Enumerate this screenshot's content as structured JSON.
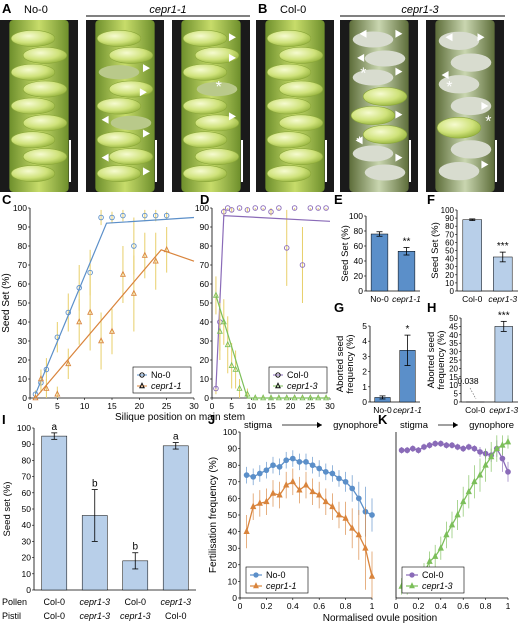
{
  "panels": {
    "A": {
      "letter": "A",
      "labels": [
        "No-0",
        "cepr1-1"
      ]
    },
    "B": {
      "letter": "B",
      "labels": [
        "Col-0",
        "cepr1-3"
      ]
    },
    "C": {
      "letter": "C"
    },
    "D": {
      "letter": "D"
    },
    "E": {
      "letter": "E"
    },
    "F": {
      "letter": "F"
    },
    "G": {
      "letter": "G"
    },
    "H": {
      "letter": "H"
    },
    "I": {
      "letter": "I"
    },
    "J": {
      "letter": "J"
    },
    "K": {
      "letter": "K"
    }
  },
  "colors": {
    "no0": "#5b8fc9",
    "cepr11": "#d9843c",
    "col0": "#8a6bb8",
    "cepr13": "#7cbf5a",
    "bar_dark": "#5b8fc9",
    "bar_light": "#b8cfe9",
    "silique": "#b8cf5a"
  },
  "chart_data": [
    {
      "panel": "C",
      "type": "scatter",
      "xlabel": "Silique position on main stem",
      "ylabel": "Seed Set (%)",
      "xlim": [
        0,
        30
      ],
      "ylim": [
        0,
        100
      ],
      "xticks": [
        0,
        5,
        10,
        15,
        20,
        25,
        30
      ],
      "yticks": [
        0,
        10,
        20,
        30,
        40,
        50,
        60,
        70,
        80,
        90,
        100
      ],
      "legend": "bottom-right",
      "series": [
        {
          "name": "No-0",
          "marker": "circle",
          "x": [
            1,
            2,
            3,
            5,
            7,
            9,
            11,
            13,
            15,
            17,
            19,
            21,
            23,
            25
          ],
          "y": [
            2,
            8,
            15,
            32,
            45,
            58,
            66,
            95,
            95,
            96,
            80,
            96,
            96,
            96
          ],
          "err": [
            2,
            5,
            6,
            8,
            10,
            12,
            12,
            4,
            3,
            3,
            15,
            3,
            3,
            2
          ],
          "fit_x": [
            1,
            14,
            30
          ],
          "fit_y": [
            2,
            92,
            95
          ]
        },
        {
          "name": "cepr1-1",
          "marker": "triangle",
          "x": [
            1,
            2,
            3,
            5,
            7,
            9,
            11,
            13,
            15,
            17,
            19,
            21,
            23,
            25
          ],
          "y": [
            0,
            10,
            5,
            2,
            18,
            40,
            45,
            30,
            35,
            65,
            55,
            75,
            72,
            78
          ],
          "err": [
            2,
            5,
            5,
            4,
            8,
            12,
            20,
            15,
            12,
            15,
            20,
            12,
            15,
            12
          ],
          "fit_x": [
            1,
            24,
            30
          ],
          "fit_y": [
            0,
            78,
            72
          ]
        }
      ]
    },
    {
      "panel": "D",
      "type": "scatter",
      "xlim": [
        0,
        30
      ],
      "ylim": [
        0,
        100
      ],
      "xticks": [
        0,
        5,
        10,
        15,
        20,
        25,
        30
      ],
      "yticks": [
        0,
        10,
        20,
        30,
        40,
        50,
        60,
        70,
        80,
        90,
        100
      ],
      "legend": "bottom-right",
      "series": [
        {
          "name": "Col-0",
          "marker": "circle",
          "x": [
            1,
            2,
            3,
            4,
            5,
            7,
            9,
            11,
            13,
            15,
            17,
            19,
            21,
            23,
            25,
            27,
            29
          ],
          "y": [
            5,
            40,
            98,
            100,
            99,
            100,
            99,
            100,
            100,
            98,
            100,
            79,
            100,
            70,
            100,
            100,
            100
          ],
          "err": [
            3,
            15,
            2,
            1,
            1,
            1,
            1,
            1,
            1,
            2,
            1,
            20,
            1,
            20,
            1,
            1,
            1
          ],
          "fit_x": [
            1,
            3,
            30
          ],
          "fit_y": [
            5,
            96,
            93
          ]
        },
        {
          "name": "cepr1-3",
          "marker": "triangle",
          "x": [
            1,
            2,
            3,
            4,
            5,
            6,
            7,
            9,
            11,
            13,
            15,
            17,
            19,
            21,
            23,
            25,
            27,
            29
          ],
          "y": [
            54,
            35,
            40,
            28,
            17,
            15,
            5,
            2,
            0,
            0,
            0,
            0,
            0,
            0,
            0,
            0,
            0,
            0
          ],
          "err": [
            10,
            15,
            12,
            15,
            12,
            10,
            5,
            3,
            1,
            1,
            1,
            1,
            1,
            1,
            1,
            1,
            1,
            1
          ],
          "fit_x": [
            1,
            9,
            30
          ],
          "fit_y": [
            54,
            0,
            0
          ]
        }
      ]
    },
    {
      "panel": "E",
      "type": "bar",
      "ylabel": "Seed Set (%)",
      "ylim": [
        0,
        100
      ],
      "yticks": [
        0,
        20,
        40,
        60,
        80,
        100
      ],
      "categories": [
        "No-0",
        "cepr1-1"
      ],
      "values": [
        76,
        53
      ],
      "err": [
        3,
        5
      ],
      "sig": [
        "",
        "**"
      ]
    },
    {
      "panel": "F",
      "type": "bar",
      "ylabel": "Seed Set (%)",
      "ylim": [
        0,
        100
      ],
      "yticks": [
        0,
        10,
        20,
        30,
        40,
        50,
        60,
        70,
        80,
        90,
        100
      ],
      "categories": [
        "Col-0",
        "cepr1-3"
      ],
      "values": [
        88,
        42
      ],
      "err": [
        1,
        6
      ],
      "sig": [
        "",
        "***"
      ]
    },
    {
      "panel": "G",
      "type": "bar",
      "ylabel": "Aborted seed frequency (%)",
      "ylim": [
        0,
        5
      ],
      "yticks": [
        0,
        1,
        2,
        3,
        4,
        5
      ],
      "categories": [
        "No-0",
        "cepr1-1"
      ],
      "values": [
        0.3,
        3.4
      ],
      "err": [
        0.1,
        1.0
      ],
      "sig": [
        "",
        "*"
      ]
    },
    {
      "panel": "H",
      "type": "bar",
      "ylabel": "Aborted seed frequency (%)",
      "ylim": [
        0,
        50
      ],
      "yticks": [
        0,
        5,
        10,
        15,
        20,
        25,
        30,
        35,
        40,
        45,
        50
      ],
      "categories": [
        "Col-0",
        "cepr1-3"
      ],
      "values": [
        0.038,
        45
      ],
      "err": [
        0,
        3
      ],
      "sig": [
        "",
        "***"
      ],
      "annotation": "0.038"
    },
    {
      "panel": "I",
      "type": "bar",
      "ylabel": "Seed set (%)",
      "ylim": [
        0,
        100
      ],
      "yticks": [
        0,
        10,
        20,
        30,
        40,
        50,
        60,
        70,
        80,
        90,
        100
      ],
      "categories": [
        "1",
        "2",
        "3",
        "4"
      ],
      "row_labels": [
        "Pollen",
        "Pistil"
      ],
      "pollen": [
        "Col-0",
        "cepr1-3",
        "Col-0",
        "cepr1-3"
      ],
      "pistil": [
        "Col-0",
        "cepr1-3",
        "cepr1-3",
        "Col-0"
      ],
      "values": [
        95,
        46,
        18,
        89
      ],
      "err": [
        2,
        16,
        5,
        2
      ],
      "sig": [
        "a",
        "b",
        "b",
        "a"
      ]
    },
    {
      "panel": "J",
      "type": "line",
      "ylabel": "Fertilisation frequency (%)",
      "xlim": [
        0,
        1
      ],
      "ylim": [
        0,
        100
      ],
      "xticks": [
        0,
        0.2,
        0.4,
        0.6,
        0.8,
        1
      ],
      "yticks": [
        0,
        10,
        20,
        30,
        40,
        50,
        60,
        70,
        80,
        90,
        100
      ],
      "axis_left": "stigma",
      "axis_right": "gynophore",
      "legend": "bottom-left",
      "series": [
        {
          "name": "No-0",
          "marker": "circle",
          "x": [
            0.05,
            0.1,
            0.15,
            0.2,
            0.25,
            0.3,
            0.35,
            0.4,
            0.45,
            0.5,
            0.55,
            0.6,
            0.65,
            0.7,
            0.75,
            0.8,
            0.85,
            0.9,
            0.95,
            1.0
          ],
          "y": [
            74,
            73,
            75,
            77,
            80,
            79,
            83,
            84,
            82,
            82,
            80,
            78,
            76,
            75,
            72,
            70,
            66,
            60,
            52,
            50
          ],
          "err": [
            5,
            5,
            5,
            5,
            5,
            5,
            5,
            5,
            5,
            5,
            5,
            5,
            5,
            5,
            5,
            6,
            8,
            10,
            15,
            10
          ]
        },
        {
          "name": "cepr1-1",
          "marker": "triangle",
          "x": [
            0.05,
            0.1,
            0.15,
            0.2,
            0.25,
            0.3,
            0.35,
            0.4,
            0.45,
            0.5,
            0.55,
            0.6,
            0.65,
            0.7,
            0.75,
            0.8,
            0.85,
            0.9,
            0.95,
            1.0
          ],
          "y": [
            40,
            55,
            57,
            58,
            63,
            62,
            68,
            70,
            65,
            68,
            64,
            62,
            58,
            55,
            50,
            48,
            42,
            38,
            30,
            13
          ],
          "err": [
            10,
            8,
            8,
            8,
            8,
            8,
            8,
            8,
            8,
            8,
            8,
            8,
            8,
            8,
            8,
            10,
            12,
            15,
            25,
            15
          ]
        }
      ]
    },
    {
      "panel": "K",
      "type": "line",
      "xlabel": "Normalised ovule position",
      "xlim": [
        0,
        1
      ],
      "ylim": [
        0,
        100
      ],
      "xticks": [
        0,
        0.2,
        0.4,
        0.6,
        0.8,
        1
      ],
      "yticks": [
        0,
        10,
        20,
        30,
        40,
        50,
        60,
        70,
        80,
        90,
        100
      ],
      "axis_left": "stigma",
      "axis_right": "gynophore",
      "legend": "bottom-left",
      "series": [
        {
          "name": "Col-0",
          "marker": "circle",
          "x": [
            0.05,
            0.1,
            0.15,
            0.2,
            0.25,
            0.3,
            0.35,
            0.4,
            0.45,
            0.5,
            0.55,
            0.6,
            0.65,
            0.7,
            0.75,
            0.8,
            0.85,
            0.9,
            0.95,
            1.0
          ],
          "y": [
            89,
            89,
            90,
            89,
            91,
            92,
            93,
            93,
            92,
            92,
            91,
            90,
            91,
            90,
            88,
            87,
            86,
            90,
            84,
            76
          ],
          "err": [
            2,
            2,
            2,
            2,
            2,
            2,
            2,
            2,
            2,
            2,
            2,
            2,
            2,
            2,
            3,
            3,
            4,
            5,
            8,
            6
          ]
        },
        {
          "name": "cepr1-3",
          "marker": "triangle",
          "x": [
            0.05,
            0.1,
            0.15,
            0.2,
            0.25,
            0.3,
            0.35,
            0.4,
            0.45,
            0.5,
            0.55,
            0.6,
            0.65,
            0.7,
            0.75,
            0.8,
            0.85,
            0.9,
            0.95,
            1.0
          ],
          "y": [
            7,
            7,
            10,
            12,
            15,
            22,
            25,
            30,
            38,
            44,
            50,
            58,
            64,
            70,
            74,
            80,
            85,
            90,
            92,
            94
          ],
          "err": [
            5,
            5,
            5,
            5,
            6,
            6,
            7,
            7,
            8,
            8,
            9,
            9,
            10,
            10,
            10,
            10,
            9,
            8,
            6,
            4
          ]
        }
      ]
    }
  ]
}
